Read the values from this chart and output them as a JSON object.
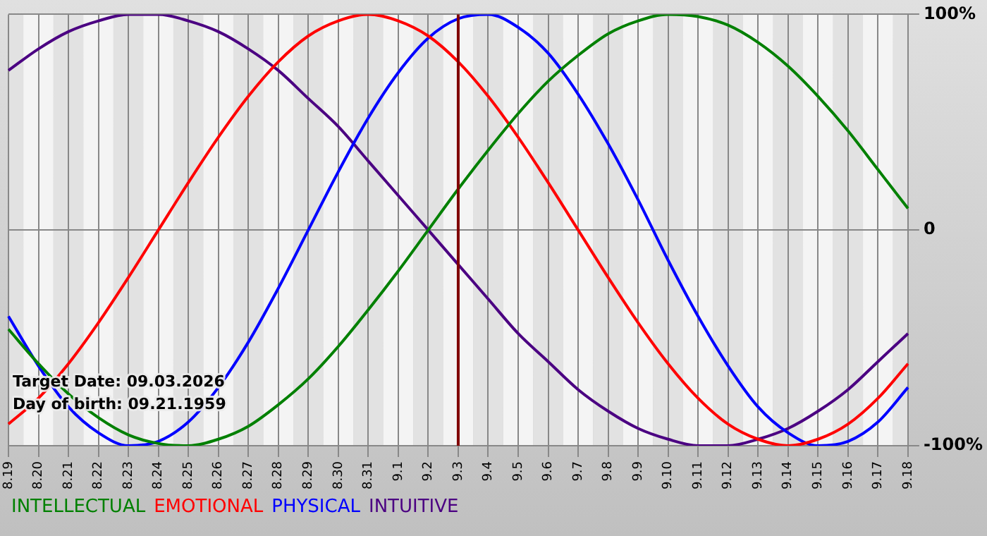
{
  "chart_data": {
    "type": "line",
    "categories": [
      "8.19",
      "8.20",
      "8.21",
      "8.22",
      "8.23",
      "8.24",
      "8.25",
      "8.26",
      "8.27",
      "8.28",
      "8.29",
      "8.30",
      "8.31",
      "9.1",
      "9.2",
      "9.3",
      "9.4",
      "9.5",
      "9.6",
      "9.7",
      "9.8",
      "9.9",
      "9.10",
      "9.11",
      "9.12",
      "9.13",
      "9.14",
      "9.15",
      "9.16",
      "9.17",
      "9.18"
    ],
    "series": [
      {
        "name": "INTELLECTUAL",
        "color": "#008000",
        "values": [
          -46,
          -62,
          -76,
          -87,
          -95,
          -99,
          -100,
          -97,
          -91,
          -81,
          -69,
          -54,
          -37,
          -19,
          0,
          19,
          37,
          54,
          69,
          81,
          91,
          97,
          100,
          99,
          95,
          87,
          76,
          62,
          46,
          28,
          10
        ]
      },
      {
        "name": "EMOTIONAL",
        "color": "#ff0000",
        "values": [
          -90,
          -78,
          -62,
          -43,
          -22,
          0,
          22,
          43,
          62,
          78,
          90,
          97,
          100,
          97,
          90,
          78,
          62,
          43,
          22,
          0,
          -22,
          -43,
          -62,
          -78,
          -90,
          -97,
          -100,
          -97,
          -90,
          -78,
          -62
        ]
      },
      {
        "name": "PHYSICAL",
        "color": "#0000ff",
        "values": [
          -40,
          -63,
          -82,
          -94,
          -100,
          -98,
          -89,
          -73,
          -52,
          -27,
          0,
          27,
          52,
          73,
          89,
          98,
          100,
          94,
          82,
          63,
          40,
          14,
          -14,
          -40,
          -63,
          -82,
          -94,
          -100,
          -98,
          -89,
          -73
        ]
      },
      {
        "name": "INTUITIVE",
        "color": "#4b0082",
        "values": [
          74,
          84,
          92,
          97,
          100,
          100,
          97,
          92,
          84,
          74,
          61,
          48,
          32,
          16,
          0,
          -16,
          -32,
          -48,
          -61,
          -74,
          -84,
          -92,
          -97,
          -100,
          -100,
          -97,
          -92,
          -84,
          -74,
          -61,
          -48
        ]
      }
    ],
    "ylim": [
      -100,
      100
    ],
    "yticks": [
      {
        "value": -100,
        "label": "-100%"
      },
      {
        "value": 0,
        "label": "0"
      },
      {
        "value": 100,
        "label": "100%"
      }
    ],
    "grid": true,
    "legend": "bottom",
    "marker": "none",
    "line_style": "solid",
    "ref_lines": [
      {
        "axis": "x",
        "value": "9.3",
        "color": "#800000"
      }
    ],
    "annotations": [
      "Target Date: 09.03.2026",
      "Day of birth: 09.21.1959"
    ]
  }
}
